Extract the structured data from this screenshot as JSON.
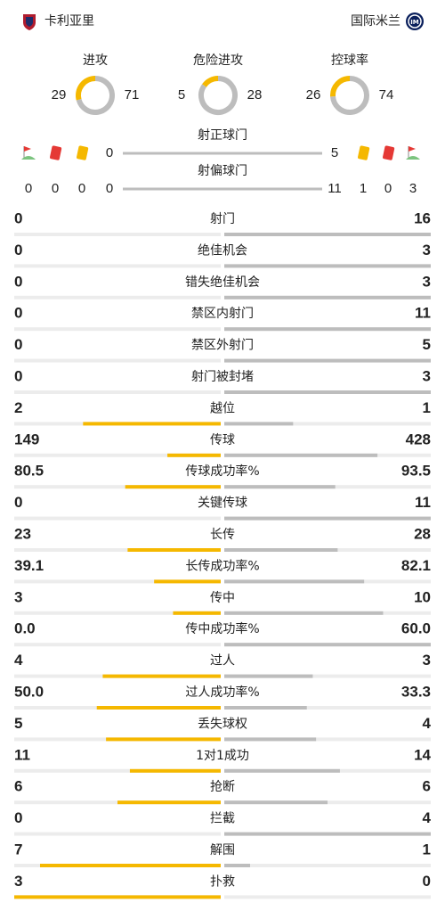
{
  "header": {
    "home": "卡利亚里",
    "away": "国际米兰"
  },
  "rings": [
    {
      "label": "进攻",
      "values": [
        29,
        71
      ]
    },
    {
      "label": "危险进攻",
      "values": [
        5,
        28
      ]
    },
    {
      "label": "控球率",
      "values": [
        26,
        74
      ]
    }
  ],
  "discipline": {
    "home": [
      0,
      0,
      0
    ],
    "away": [
      1,
      0,
      3
    ]
  },
  "shot_bars": [
    {
      "label": "射正球门",
      "values": [
        0,
        5
      ]
    },
    {
      "label": "射偏球门",
      "values": [
        0,
        11
      ]
    }
  ],
  "stats": [
    {
      "label": "射门",
      "values": [
        0,
        16
      ]
    },
    {
      "label": "绝佳机会",
      "values": [
        0,
        3
      ]
    },
    {
      "label": "错失绝佳机会",
      "values": [
        0,
        3
      ]
    },
    {
      "label": "禁区内射门",
      "values": [
        0,
        11
      ]
    },
    {
      "label": "禁区外射门",
      "values": [
        0,
        5
      ]
    },
    {
      "label": "射门被封堵",
      "values": [
        0,
        3
      ]
    },
    {
      "label": "越位",
      "values": [
        2,
        1
      ]
    },
    {
      "label": "传球",
      "values": [
        149,
        428
      ]
    },
    {
      "label": "传球成功率%",
      "values": [
        80.5,
        93.5
      ]
    },
    {
      "label": "关键传球",
      "values": [
        0,
        11
      ]
    },
    {
      "label": "长传",
      "values": [
        23,
        28
      ]
    },
    {
      "label": "长传成功率%",
      "values": [
        39.1,
        82.1
      ]
    },
    {
      "label": "传中",
      "values": [
        3,
        10
      ]
    },
    {
      "label": "传中成功率%",
      "values": [
        0,
        60
      ],
      "value_labels": [
        "0.0",
        "60.0"
      ]
    },
    {
      "label": "过人",
      "values": [
        4,
        3
      ]
    },
    {
      "label": "过人成功率%",
      "values": [
        50,
        33.3
      ],
      "value_labels": [
        "50.0",
        "33.3"
      ]
    },
    {
      "label": "丢失球权",
      "values": [
        5,
        4
      ]
    },
    {
      "label": "1对1成功",
      "values": [
        11,
        14
      ]
    },
    {
      "label": "抢断",
      "values": [
        6,
        6
      ]
    },
    {
      "label": "拦截",
      "values": [
        0,
        4
      ]
    },
    {
      "label": "解围",
      "values": [
        7,
        1
      ]
    },
    {
      "label": "扑救",
      "values": [
        3,
        0
      ]
    }
  ]
}
